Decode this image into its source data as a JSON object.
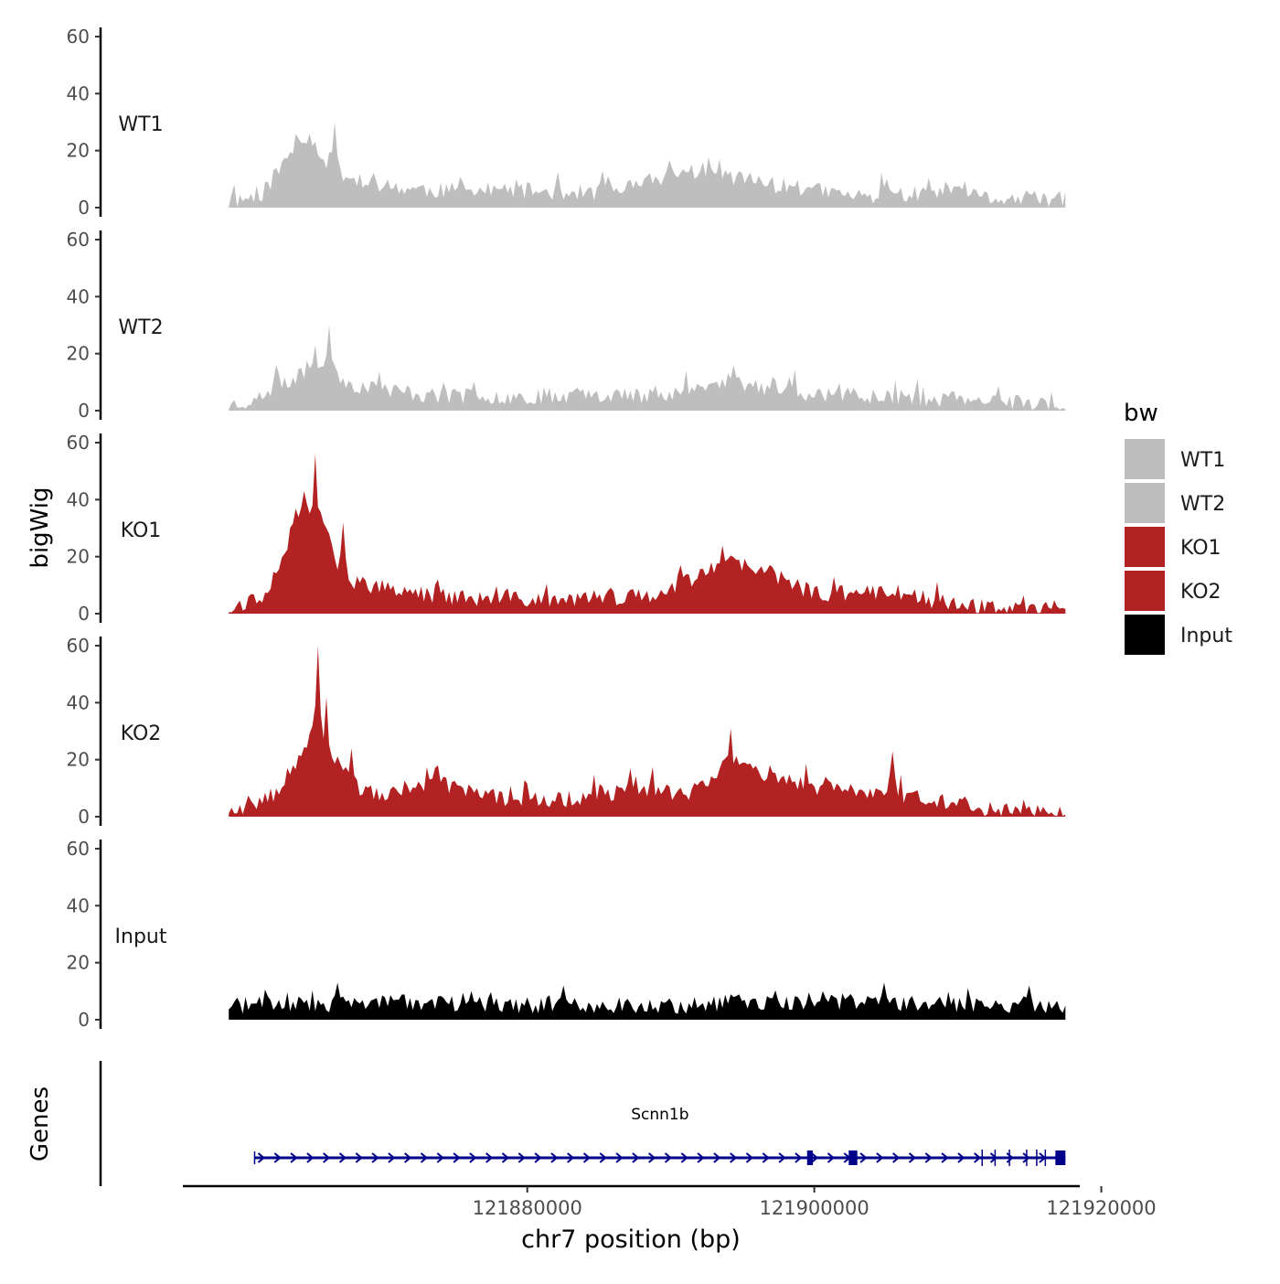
{
  "chart_data": {
    "type": "area",
    "title": "",
    "ylabel": "bigWig",
    "genes_label": "Genes",
    "xlabel": "chr7 position (bp)",
    "x_range": [
      121856000,
      121918500
    ],
    "region": [
      121859200,
      121917500
    ],
    "x_ticks": [
      121880000,
      121900000,
      121920000
    ],
    "x_tick_labels": [
      "121880000",
      "121900000",
      "121920000"
    ],
    "ylim": [
      0,
      60
    ],
    "y_ticks": [
      0,
      20,
      40,
      60
    ],
    "y_tick_labels": [
      "0",
      "20",
      "40",
      "60"
    ],
    "legend": {
      "title": "bw",
      "position": "right",
      "entries": [
        {
          "label": "WT1",
          "color": "#bebebe"
        },
        {
          "label": "WT2",
          "color": "#bebebe"
        },
        {
          "label": "KO1",
          "color": "#b22222"
        },
        {
          "label": "KO2",
          "color": "#b22222"
        },
        {
          "label": "Input",
          "color": "#000000"
        }
      ]
    },
    "series": [
      {
        "name": "WT1",
        "color": "#bebebe",
        "noise": 6,
        "seed": 11,
        "profile": [
          [
            0,
            1.5
          ],
          [
            0.04,
            5
          ],
          [
            0.06,
            13
          ],
          [
            0.08,
            22
          ],
          [
            0.095,
            25
          ],
          [
            0.12,
            15
          ],
          [
            0.16,
            8
          ],
          [
            0.25,
            6
          ],
          [
            0.35,
            6
          ],
          [
            0.45,
            5
          ],
          [
            0.55,
            13
          ],
          [
            0.6,
            11
          ],
          [
            0.65,
            8
          ],
          [
            0.75,
            4
          ],
          [
            0.85,
            5
          ],
          [
            0.92,
            3
          ],
          [
            1,
            3
          ]
        ],
        "spikes": [
          [
            0.127,
            30
          ],
          [
            0.095,
            26
          ],
          [
            0.588,
            17
          ],
          [
            0.445,
            13
          ],
          [
            0.785,
            10
          ],
          [
            0.567,
            16
          ]
        ]
      },
      {
        "name": "WT2",
        "color": "#bebebe",
        "noise": 6,
        "seed": 23,
        "profile": [
          [
            0,
            2
          ],
          [
            0.05,
            5
          ],
          [
            0.08,
            12
          ],
          [
            0.1,
            16
          ],
          [
            0.12,
            14
          ],
          [
            0.15,
            9
          ],
          [
            0.25,
            5
          ],
          [
            0.35,
            5
          ],
          [
            0.45,
            6
          ],
          [
            0.5,
            5
          ],
          [
            0.6,
            10
          ],
          [
            0.63,
            8
          ],
          [
            0.7,
            6
          ],
          [
            0.8,
            5
          ],
          [
            0.9,
            3
          ],
          [
            1,
            2
          ]
        ],
        "spikes": [
          [
            0.121,
            30
          ],
          [
            0.104,
            23
          ],
          [
            0.058,
            16
          ],
          [
            0.604,
            16
          ]
        ]
      },
      {
        "name": "KO1",
        "color": "#b22222",
        "noise": 6,
        "seed": 37,
        "profile": [
          [
            0,
            2
          ],
          [
            0.04,
            6
          ],
          [
            0.065,
            20
          ],
          [
            0.08,
            34
          ],
          [
            0.1,
            38
          ],
          [
            0.12,
            30
          ],
          [
            0.135,
            12
          ],
          [
            0.2,
            8
          ],
          [
            0.3,
            5
          ],
          [
            0.4,
            5
          ],
          [
            0.5,
            6
          ],
          [
            0.55,
            12
          ],
          [
            0.6,
            18
          ],
          [
            0.65,
            14
          ],
          [
            0.7,
            7
          ],
          [
            0.8,
            8
          ],
          [
            0.85,
            4
          ],
          [
            0.9,
            2
          ],
          [
            1,
            1
          ]
        ],
        "spikes": [
          [
            0.104,
            56
          ],
          [
            0.09,
            43
          ],
          [
            0.135,
            32
          ],
          [
            0.59,
            24
          ],
          [
            0.54,
            17
          ],
          [
            0.66,
            15
          ],
          [
            0.25,
            12
          ]
        ]
      },
      {
        "name": "KO2",
        "color": "#b22222",
        "noise": 6,
        "seed": 53,
        "profile": [
          [
            0,
            2
          ],
          [
            0.05,
            7
          ],
          [
            0.07,
            14
          ],
          [
            0.085,
            22
          ],
          [
            0.1,
            30
          ],
          [
            0.13,
            20
          ],
          [
            0.16,
            8
          ],
          [
            0.2,
            8
          ],
          [
            0.25,
            12
          ],
          [
            0.3,
            7
          ],
          [
            0.4,
            6
          ],
          [
            0.45,
            8
          ],
          [
            0.5,
            10
          ],
          [
            0.55,
            8
          ],
          [
            0.6,
            20
          ],
          [
            0.63,
            16
          ],
          [
            0.7,
            10
          ],
          [
            0.8,
            8
          ],
          [
            0.85,
            6
          ],
          [
            0.9,
            3
          ],
          [
            1,
            2
          ]
        ],
        "spikes": [
          [
            0.105,
            60
          ],
          [
            0.115,
            42
          ],
          [
            0.6,
            31
          ],
          [
            0.794,
            23
          ],
          [
            0.48,
            17
          ],
          [
            0.25,
            18
          ],
          [
            0.148,
            24
          ]
        ]
      },
      {
        "name": "Input",
        "color": "#000000",
        "noise": 6,
        "seed": 71,
        "profile": [
          [
            0,
            5
          ],
          [
            0.2,
            6
          ],
          [
            0.4,
            5
          ],
          [
            0.55,
            5
          ],
          [
            0.6,
            6
          ],
          [
            0.8,
            6
          ],
          [
            1,
            5
          ]
        ],
        "spikes": [
          [
            0.13,
            13
          ],
          [
            0.4,
            12
          ],
          [
            0.783,
            13
          ],
          [
            0.955,
            12
          ],
          [
            0.29,
            10
          ],
          [
            0.71,
            10
          ]
        ]
      }
    ],
    "genes": [
      {
        "name": "Scnn1b",
        "strand": "+",
        "start": 121861000,
        "end": 121917500,
        "exons": [
          [
            121899500,
            121899900
          ],
          [
            121902400,
            121903000
          ],
          [
            121916800,
            121917500
          ]
        ]
      }
    ]
  }
}
